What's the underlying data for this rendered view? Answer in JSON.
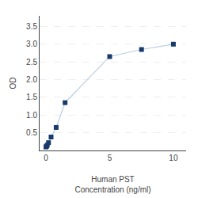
{
  "chart_data": {
    "type": "line",
    "x": [
      0,
      0.05,
      0.1,
      0.2,
      0.4,
      0.8,
      1.5,
      5,
      7.5,
      10
    ],
    "series": [
      {
        "type": "line",
        "color": "#b8cfe0",
        "values": [
          0.1,
          0.12,
          0.15,
          0.22,
          0.38,
          0.65,
          1.35,
          2.65,
          2.85,
          3.0
        ]
      },
      {
        "type": "scatter",
        "color": "#1a3a6b",
        "marker": "square",
        "values": [
          0.1,
          0.12,
          0.15,
          0.22,
          0.38,
          0.65,
          1.35,
          2.65,
          2.85,
          3.0
        ]
      }
    ],
    "xlabel": "Human PST\nConcentration (ng/ml)",
    "ylabel": "OD",
    "xlim": [
      -0.5,
      11
    ],
    "ylim": [
      0,
      3.8
    ],
    "xticks": [
      0,
      5,
      10
    ],
    "yticks": [
      0.5,
      {
        "value": 1,
        "label": "1.0"
      },
      1.5,
      {
        "value": 2,
        "label": "2.0"
      },
      2.5,
      {
        "value": 3,
        "label": "3.0"
      },
      3.5
    ],
    "grid": "y"
  }
}
